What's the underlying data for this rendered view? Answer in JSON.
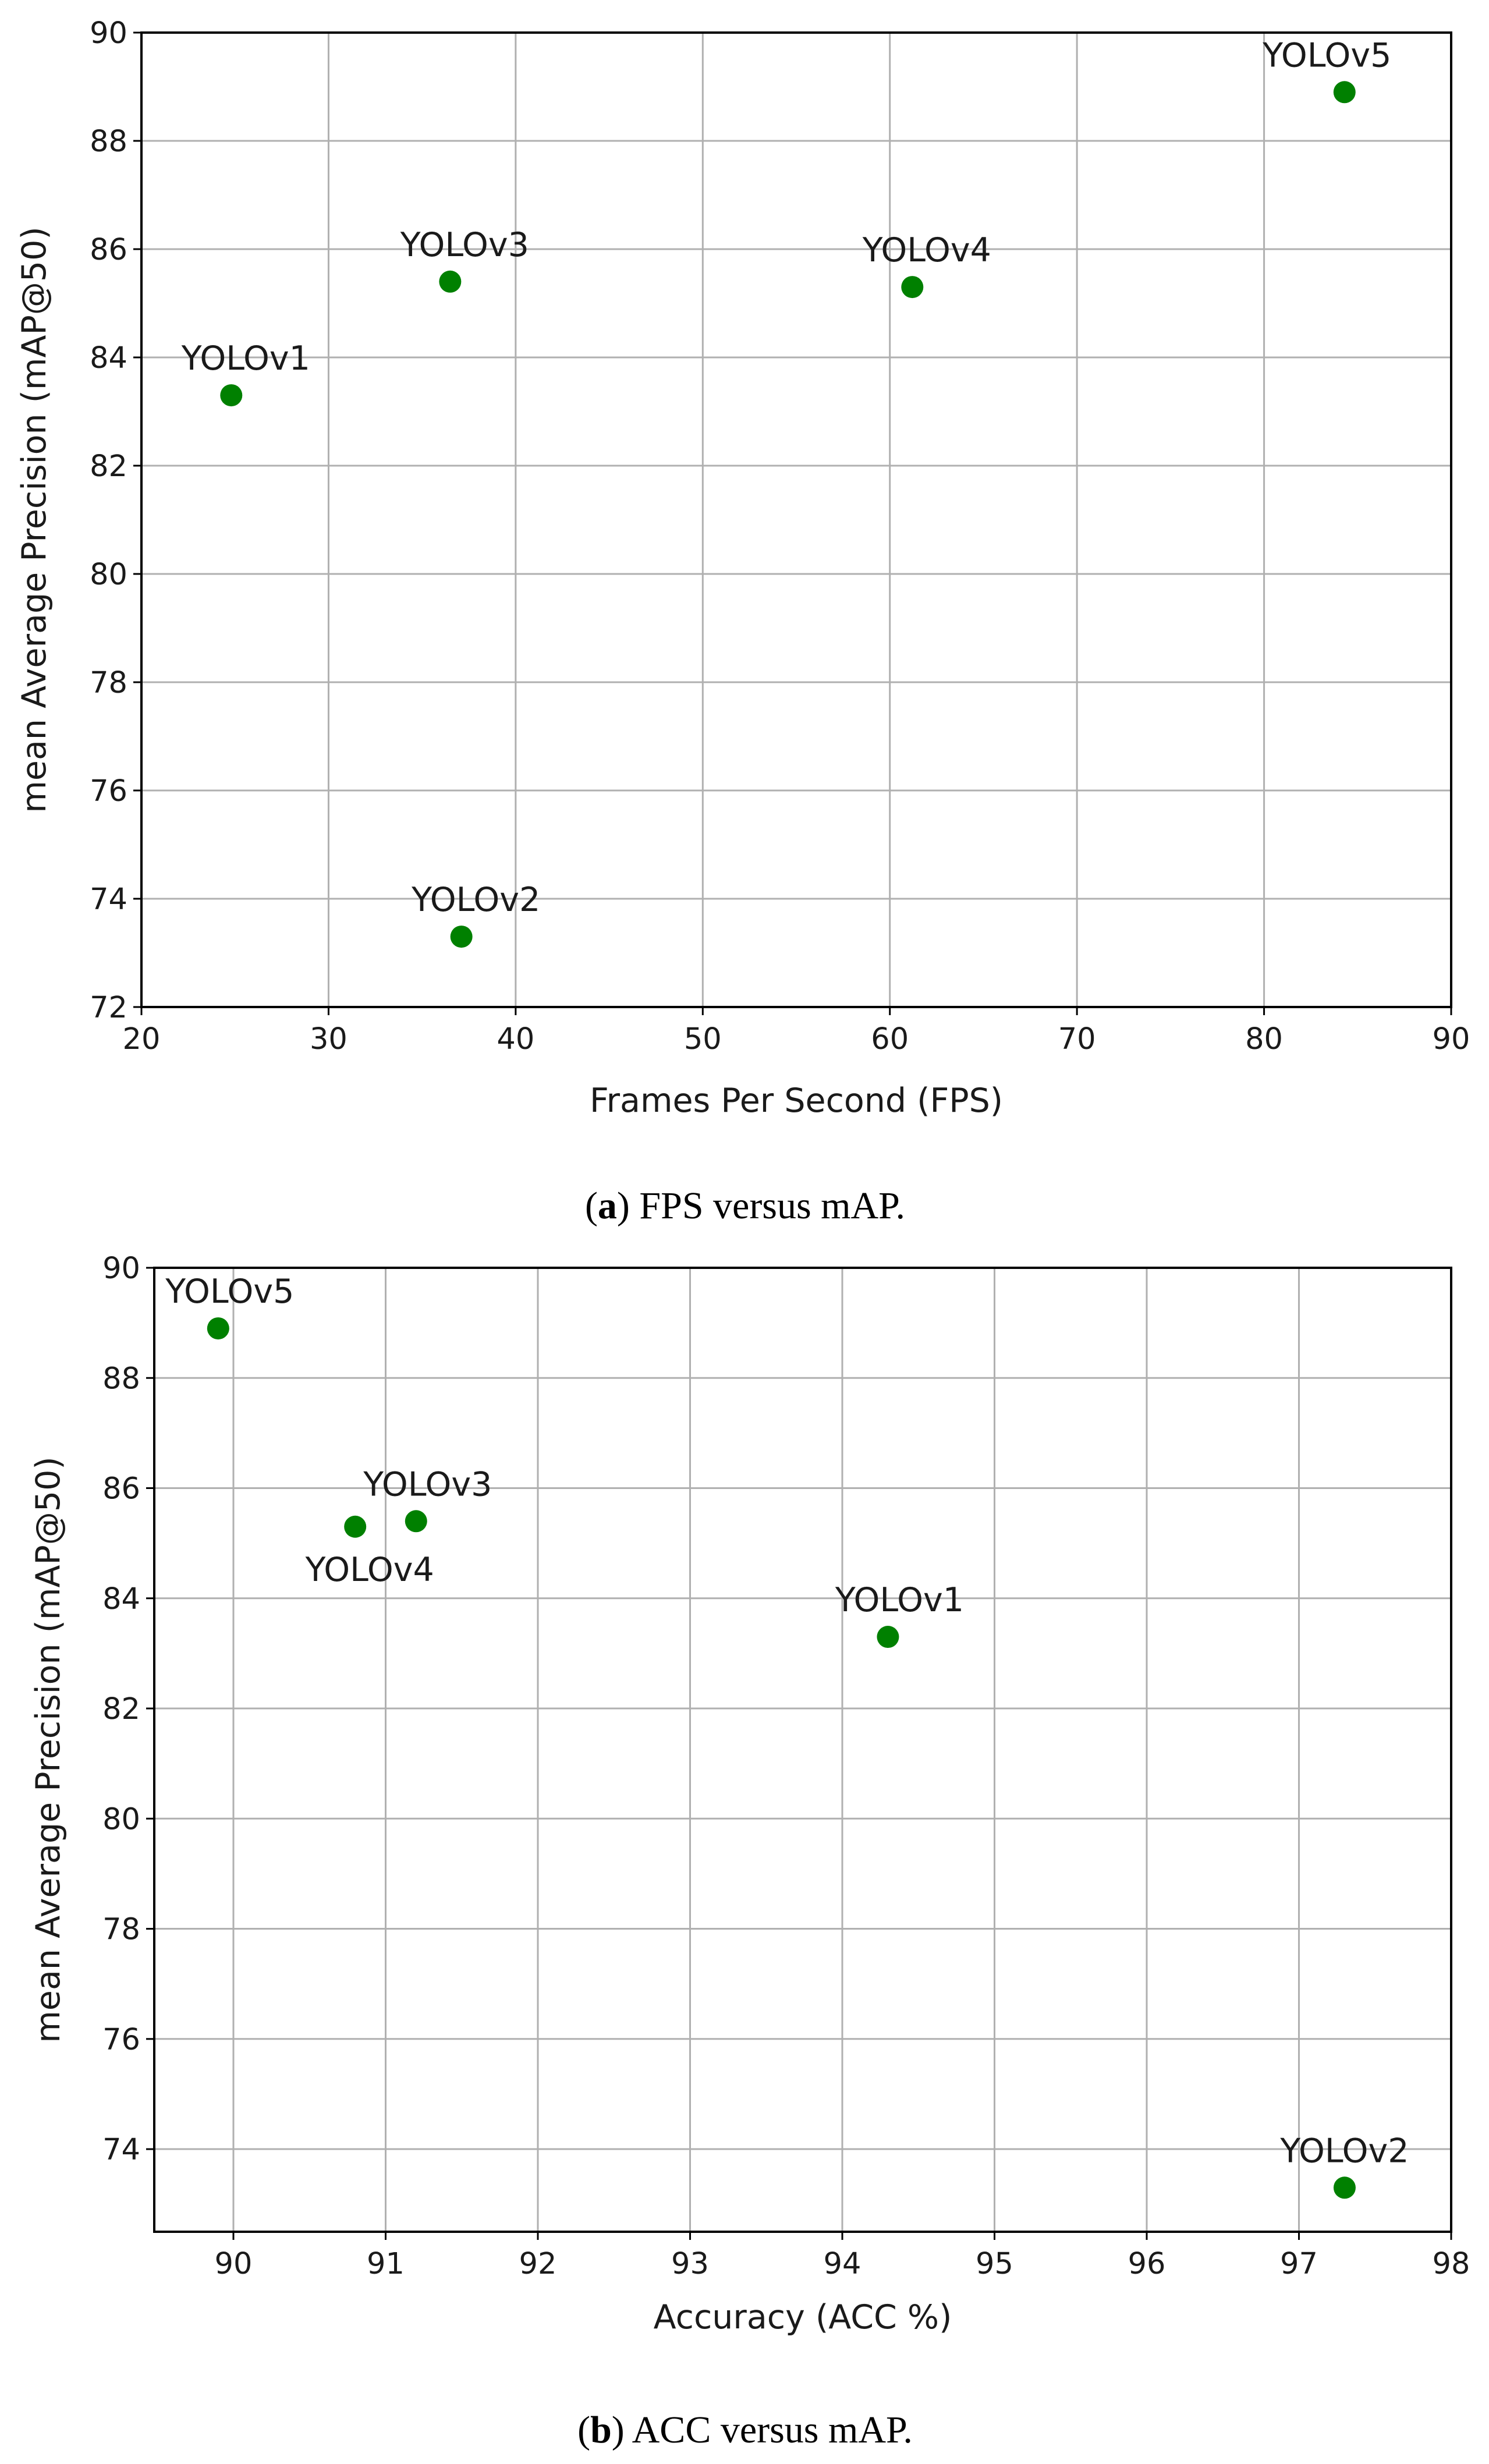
{
  "chart_data": [
    {
      "type": "scatter",
      "title": "",
      "xlabel": "Frames Per Second (FPS)",
      "ylabel": "mean Average Precision (mAP@50)",
      "xlim": [
        20,
        90
      ],
      "ylim": [
        72,
        90
      ],
      "xticks": [
        20,
        30,
        40,
        50,
        60,
        70,
        80,
        90
      ],
      "yticks": [
        72,
        74,
        76,
        78,
        80,
        82,
        84,
        86,
        88,
        90
      ],
      "grid": true,
      "marker_color": "#008000",
      "points": [
        {
          "label": "YOLOv1",
          "x": 24.8,
          "y": 83.3
        },
        {
          "label": "YOLOv2",
          "x": 37.1,
          "y": 73.3
        },
        {
          "label": "YOLOv3",
          "x": 36.5,
          "y": 85.4
        },
        {
          "label": "YOLOv4",
          "x": 61.2,
          "y": 85.3
        },
        {
          "label": "YOLOv5",
          "x": 84.3,
          "y": 88.9
        }
      ],
      "caption": {
        "letter": "a",
        "text": " FPS versus mAP."
      }
    },
    {
      "type": "scatter",
      "title": "",
      "xlabel": "Accuracy (ACC %)",
      "ylabel": "mean Average Precision (mAP@50)",
      "xlim": [
        89.48,
        98
      ],
      "ylim": [
        72.5,
        90
      ],
      "xticks": [
        90,
        91,
        92,
        93,
        94,
        95,
        96,
        97,
        98
      ],
      "yticks": [
        74,
        76,
        78,
        80,
        82,
        84,
        86,
        88,
        90
      ],
      "grid": true,
      "marker_color": "#008000",
      "points": [
        {
          "label": "YOLOv5",
          "x": 89.9,
          "y": 88.9
        },
        {
          "label": "YOLOv4",
          "x": 90.8,
          "y": 85.3
        },
        {
          "label": "YOLOv3",
          "x": 91.2,
          "y": 85.4
        },
        {
          "label": "YOLOv1",
          "x": 94.3,
          "y": 83.3
        },
        {
          "label": "YOLOv2",
          "x": 97.3,
          "y": 73.3
        }
      ],
      "caption": {
        "letter": "b",
        "text": " ACC versus mAP."
      }
    }
  ]
}
